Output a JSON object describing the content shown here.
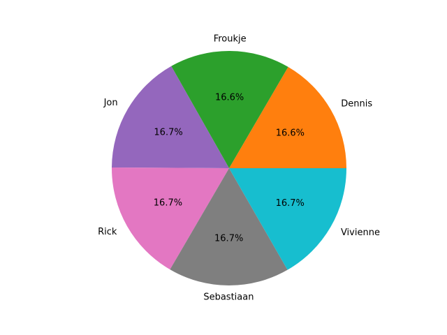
{
  "chart_data": {
    "type": "pie",
    "categories": [
      "Dennis",
      "Froukje",
      "Jon",
      "Rick",
      "Sebastiaan",
      "Vivienne"
    ],
    "values": [
      16.6,
      16.6,
      16.7,
      16.7,
      16.7,
      16.7
    ],
    "percent_labels": [
      "16.6%",
      "16.6%",
      "16.7%",
      "16.7%",
      "16.7%",
      "16.7%"
    ],
    "colors": [
      "#ff7f0e",
      "#2ca02c",
      "#9467bd",
      "#e377c2",
      "#7f7f7f",
      "#17becf"
    ],
    "start_angle_deg": 0,
    "direction": "counterclockwise",
    "legend": "none"
  }
}
